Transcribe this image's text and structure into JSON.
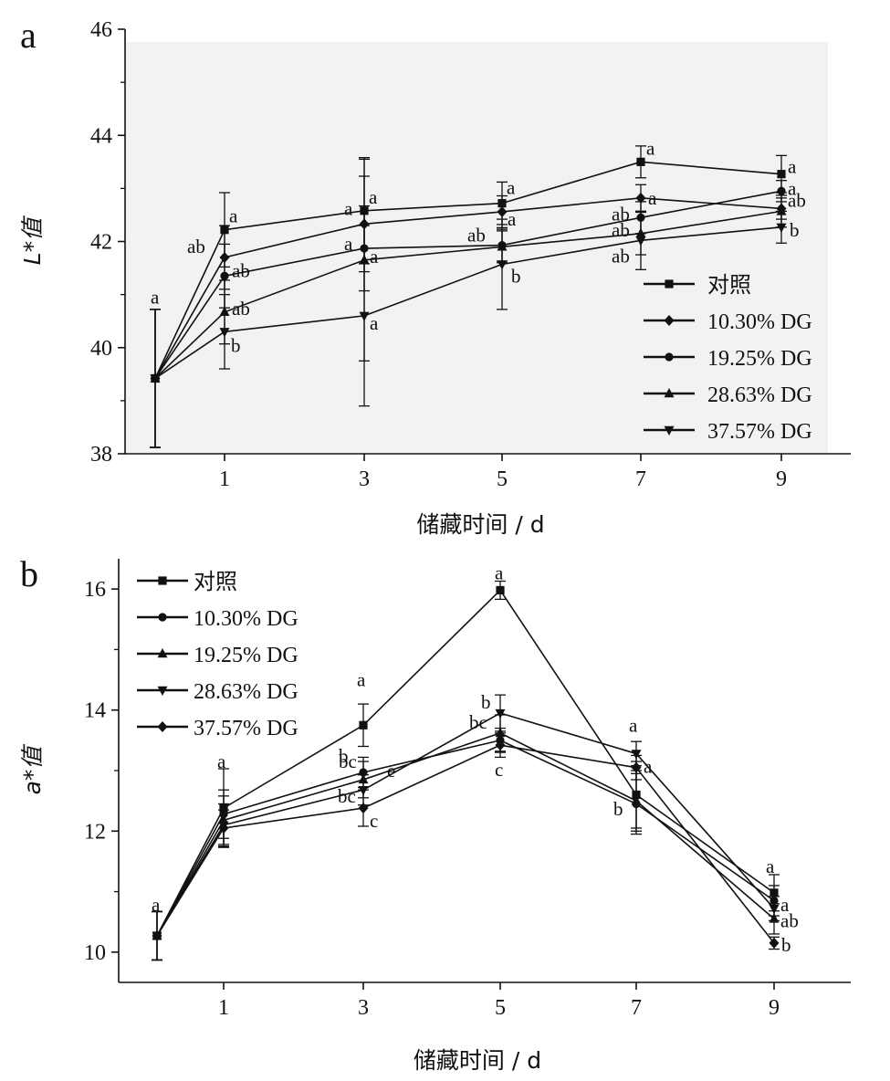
{
  "chart_data": [
    {
      "type": "line",
      "panel": "a",
      "xlabel": "储藏时间 / d",
      "ylabel": "L*值",
      "x": [
        0,
        1,
        3,
        5,
        7,
        9
      ],
      "x_ticks": [
        "1",
        "3",
        "5",
        "7",
        "9"
      ],
      "x_tick_values": [
        1,
        3,
        5,
        7,
        9
      ],
      "ylim": [
        38,
        46
      ],
      "y_ticks": [
        38,
        40,
        42,
        44,
        46
      ],
      "y_tick_labels": [
        "38",
        "40",
        "42",
        "44",
        "46"
      ],
      "legend_position": "bottom-right",
      "grid": false,
      "series": [
        {
          "name": "对照",
          "marker": "square",
          "values": [
            39.42,
            42.22,
            42.58,
            42.72,
            43.5,
            43.27
          ],
          "errors": [
            1.3,
            0.7,
            1.0,
            0.4,
            0.3,
            0.35
          ],
          "labels": [
            "a",
            "a",
            "a",
            "a",
            "a",
            "a"
          ]
        },
        {
          "name": "10.30% DG",
          "marker": "diamond",
          "values": [
            39.42,
            41.7,
            42.33,
            42.56,
            42.82,
            42.62
          ],
          "errors": [
            1.3,
            0.6,
            0.9,
            0.3,
            0.25,
            0.2
          ],
          "labels": [
            "",
            "ab",
            "a",
            "a",
            "a",
            "ab"
          ]
        },
        {
          "name": "19.25% DG",
          "marker": "circle",
          "values": [
            39.42,
            41.35,
            41.87,
            41.93,
            42.45,
            42.95
          ],
          "errors": [
            1.3,
            0.6,
            0.8,
            0.3,
            0.3,
            0.2
          ],
          "labels": [
            "",
            "ab",
            "a",
            "ab",
            "ab",
            "a"
          ]
        },
        {
          "name": "28.63% DG",
          "marker": "triangle-up",
          "values": [
            39.42,
            40.67,
            41.65,
            41.9,
            42.15,
            42.57
          ],
          "errors": [
            1.3,
            0.6,
            1.9,
            0.3,
            0.4,
            0.3
          ],
          "labels": [
            "",
            "ab",
            "a",
            "ab",
            "ab",
            "ab"
          ]
        },
        {
          "name": "37.57% DG",
          "marker": "triangle-down",
          "values": [
            39.42,
            40.3,
            40.6,
            41.57,
            42.02,
            42.27
          ],
          "errors": [
            1.3,
            0.7,
            1.7,
            0.85,
            0.55,
            0.3
          ],
          "labels": [
            "",
            "b",
            "a",
            "b",
            "ab",
            "b"
          ]
        }
      ]
    },
    {
      "type": "line",
      "panel": "b",
      "xlabel": "储藏时间 / d",
      "ylabel": "a*值",
      "x": [
        0,
        1,
        3,
        5,
        7,
        9
      ],
      "x_ticks": [
        "1",
        "3",
        "5",
        "7",
        "9"
      ],
      "x_tick_values": [
        1,
        3,
        5,
        7,
        9
      ],
      "ylim": [
        9.5,
        16.5
      ],
      "y_ticks": [
        10,
        12,
        14,
        16
      ],
      "y_tick_labels": [
        "10",
        "12",
        "14",
        "16"
      ],
      "legend_position": "top-left",
      "grid": false,
      "series": [
        {
          "name": "对照",
          "marker": "square",
          "values": [
            10.27,
            12.38,
            13.75,
            15.98,
            12.6,
            10.98
          ],
          "errors": [
            0.4,
            0.65,
            0.35,
            0.15,
            0.55,
            0.3
          ],
          "labels": [
            "a",
            "a",
            "a",
            "a",
            "",
            "a"
          ]
        },
        {
          "name": "10.30% DG",
          "marker": "circle",
          "values": [
            10.27,
            12.28,
            12.97,
            13.5,
            12.45,
            10.85
          ],
          "errors": [
            0.4,
            0.4,
            0.25,
            0.2,
            0.5,
            0.25
          ],
          "labels": [
            "",
            "",
            "b",
            "",
            "",
            ""
          ]
        },
        {
          "name": "19.25% DG",
          "marker": "triangle-up",
          "values": [
            10.27,
            12.18,
            12.85,
            13.62,
            12.5,
            10.55
          ],
          "errors": [
            0.4,
            0.4,
            0.3,
            0.3,
            0.5,
            0.25
          ],
          "labels": [
            "",
            "",
            "bc",
            "bc",
            "",
            "ab"
          ]
        },
        {
          "name": "28.63% DG",
          "marker": "triangle-down",
          "values": [
            10.27,
            12.1,
            12.68,
            13.95,
            13.28,
            10.72
          ],
          "errors": [
            0.4,
            0.35,
            0.25,
            0.3,
            0.2,
            0.2
          ],
          "labels": [
            "",
            "",
            "bc",
            "b",
            "a",
            "a"
          ]
        },
        {
          "name": "37.57% DG",
          "marker": "diamond",
          "values": [
            10.27,
            12.05,
            12.38,
            13.42,
            13.05,
            10.15
          ],
          "errors": [
            0.4,
            0.3,
            0.3,
            0.2,
            0.2,
            0.1
          ],
          "labels": [
            "",
            "",
            "c",
            "c",
            "a",
            "b"
          ]
        }
      ]
    }
  ]
}
